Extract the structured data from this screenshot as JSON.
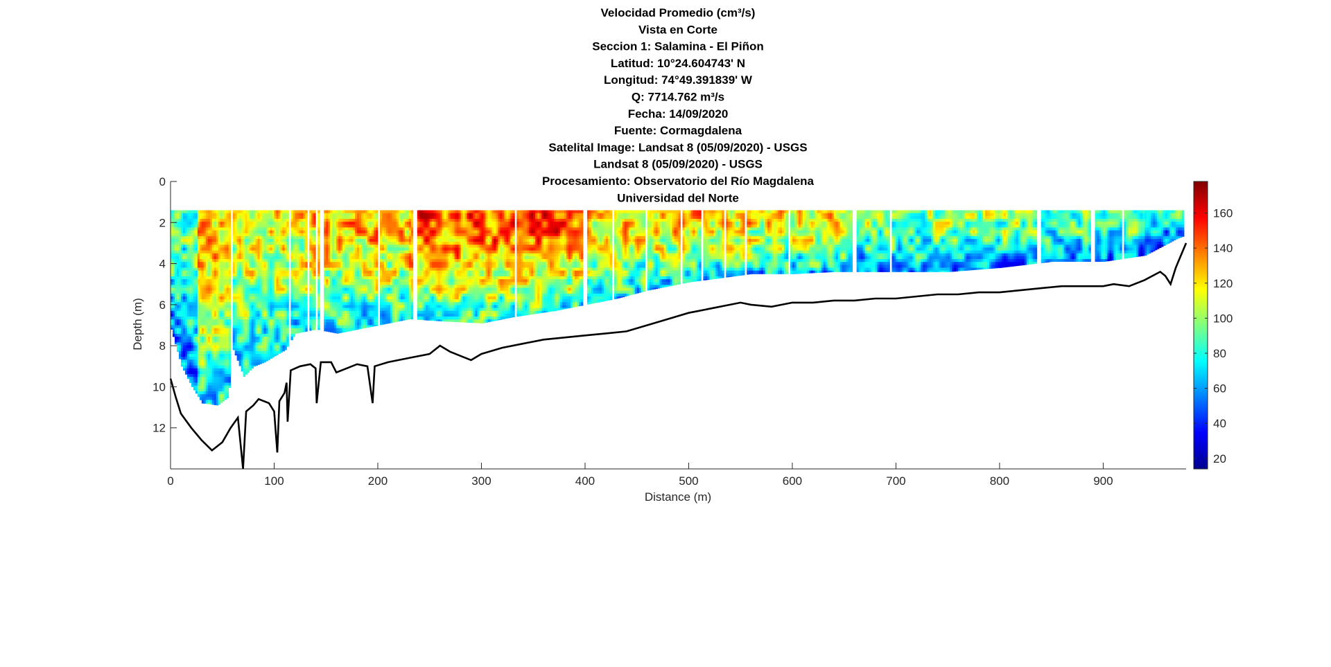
{
  "chart_data": {
    "type": "heatmap",
    "title_lines": [
      "Velocidad Promedio (cm³/s)",
      "Vista en Corte",
      "Seccion 1: Salamina - El Piñon",
      "Latitud: 10°24.604743' N",
      "Longitud: 74°49.391839' W",
      "Q: 7714.762 m³/s",
      "Fecha: 14/09/2020",
      "Fuente: Cormagdalena",
      "Satelital Image: Landsat 8 (05/09/2020) - USGS",
      "Landsat 8 (05/09/2020) - USGS",
      "Procesamiento: Observatorio del Río Magdalena",
      "Universidad del Norte"
    ],
    "xlabel": "Distance (m)",
    "ylabel": "Depth (m)",
    "xlim": [
      0,
      980
    ],
    "ylim": [
      0,
      14
    ],
    "y_reversed": true,
    "xticks": [
      "0",
      "100",
      "200",
      "300",
      "400",
      "500",
      "600",
      "700",
      "800",
      "900"
    ],
    "yticks": [
      "0",
      "2",
      "4",
      "6",
      "8",
      "10",
      "12"
    ],
    "colorbar": {
      "colormap": "jet",
      "range": [
        14,
        178
      ],
      "ticks": [
        "20",
        "40",
        "60",
        "80",
        "100",
        "120",
        "140",
        "160"
      ]
    },
    "velocity_top_depth": 1.4,
    "velocity_bottom_profile": [
      [
        0,
        7.2
      ],
      [
        10,
        9
      ],
      [
        20,
        10
      ],
      [
        30,
        10.8
      ],
      [
        45,
        10.9
      ],
      [
        55,
        10.5
      ],
      [
        60,
        8.2
      ],
      [
        70,
        9.5
      ],
      [
        80,
        9
      ],
      [
        90,
        8.8
      ],
      [
        100,
        8.5
      ],
      [
        110,
        8.2
      ],
      [
        120,
        7.4
      ],
      [
        140,
        7.2
      ],
      [
        160,
        7.4
      ],
      [
        190,
        7.1
      ],
      [
        210,
        6.9
      ],
      [
        230,
        6.7
      ],
      [
        260,
        6.8
      ],
      [
        300,
        6.9
      ],
      [
        330,
        6.6
      ],
      [
        370,
        6.3
      ],
      [
        400,
        6.0
      ],
      [
        430,
        5.7
      ],
      [
        460,
        5.3
      ],
      [
        500,
        4.9
      ],
      [
        530,
        4.7
      ],
      [
        560,
        4.5
      ],
      [
        600,
        4.5
      ],
      [
        640,
        4.4
      ],
      [
        700,
        4.4
      ],
      [
        750,
        4.4
      ],
      [
        800,
        4.2
      ],
      [
        850,
        3.9
      ],
      [
        900,
        3.9
      ],
      [
        940,
        3.6
      ],
      [
        970,
        2.8
      ],
      [
        980,
        2.6
      ]
    ],
    "bed_profile": [
      [
        0,
        9.6
      ],
      [
        5,
        10.5
      ],
      [
        10,
        11.3
      ],
      [
        20,
        12
      ],
      [
        30,
        12.6
      ],
      [
        40,
        13.1
      ],
      [
        50,
        12.7
      ],
      [
        58,
        12.0
      ],
      [
        65,
        11.5
      ],
      [
        70,
        14
      ],
      [
        73,
        11.2
      ],
      [
        80,
        10.9
      ],
      [
        85,
        10.6
      ],
      [
        95,
        10.8
      ],
      [
        100,
        11.2
      ],
      [
        103,
        13.2
      ],
      [
        105,
        10.7
      ],
      [
        110,
        10.3
      ],
      [
        112,
        9.8
      ],
      [
        113,
        11.7
      ],
      [
        116,
        9.2
      ],
      [
        125,
        9.0
      ],
      [
        135,
        8.9
      ],
      [
        140,
        9.1
      ],
      [
        141,
        10.8
      ],
      [
        145,
        8.8
      ],
      [
        155,
        8.8
      ],
      [
        160,
        9.3
      ],
      [
        170,
        9.1
      ],
      [
        180,
        8.9
      ],
      [
        190,
        9.0
      ],
      [
        195,
        10.8
      ],
      [
        197,
        9.0
      ],
      [
        210,
        8.8
      ],
      [
        230,
        8.6
      ],
      [
        250,
        8.4
      ],
      [
        260,
        8.0
      ],
      [
        270,
        8.3
      ],
      [
        290,
        8.7
      ],
      [
        300,
        8.4
      ],
      [
        320,
        8.1
      ],
      [
        340,
        7.9
      ],
      [
        360,
        7.7
      ],
      [
        380,
        7.6
      ],
      [
        400,
        7.5
      ],
      [
        420,
        7.4
      ],
      [
        440,
        7.3
      ],
      [
        460,
        7.0
      ],
      [
        480,
        6.7
      ],
      [
        500,
        6.4
      ],
      [
        510,
        6.3
      ],
      [
        520,
        6.2
      ],
      [
        540,
        6.0
      ],
      [
        550,
        5.9
      ],
      [
        560,
        6.0
      ],
      [
        580,
        6.1
      ],
      [
        600,
        5.9
      ],
      [
        620,
        5.9
      ],
      [
        640,
        5.8
      ],
      [
        660,
        5.8
      ],
      [
        680,
        5.7
      ],
      [
        700,
        5.7
      ],
      [
        720,
        5.6
      ],
      [
        740,
        5.5
      ],
      [
        760,
        5.5
      ],
      [
        780,
        5.4
      ],
      [
        800,
        5.4
      ],
      [
        820,
        5.3
      ],
      [
        840,
        5.2
      ],
      [
        860,
        5.1
      ],
      [
        880,
        5.1
      ],
      [
        900,
        5.1
      ],
      [
        910,
        5.0
      ],
      [
        925,
        5.1
      ],
      [
        940,
        4.8
      ],
      [
        955,
        4.4
      ],
      [
        960,
        4.6
      ],
      [
        965,
        5.0
      ],
      [
        970,
        4.2
      ],
      [
        975,
        3.6
      ],
      [
        980,
        3.0
      ]
    ]
  }
}
